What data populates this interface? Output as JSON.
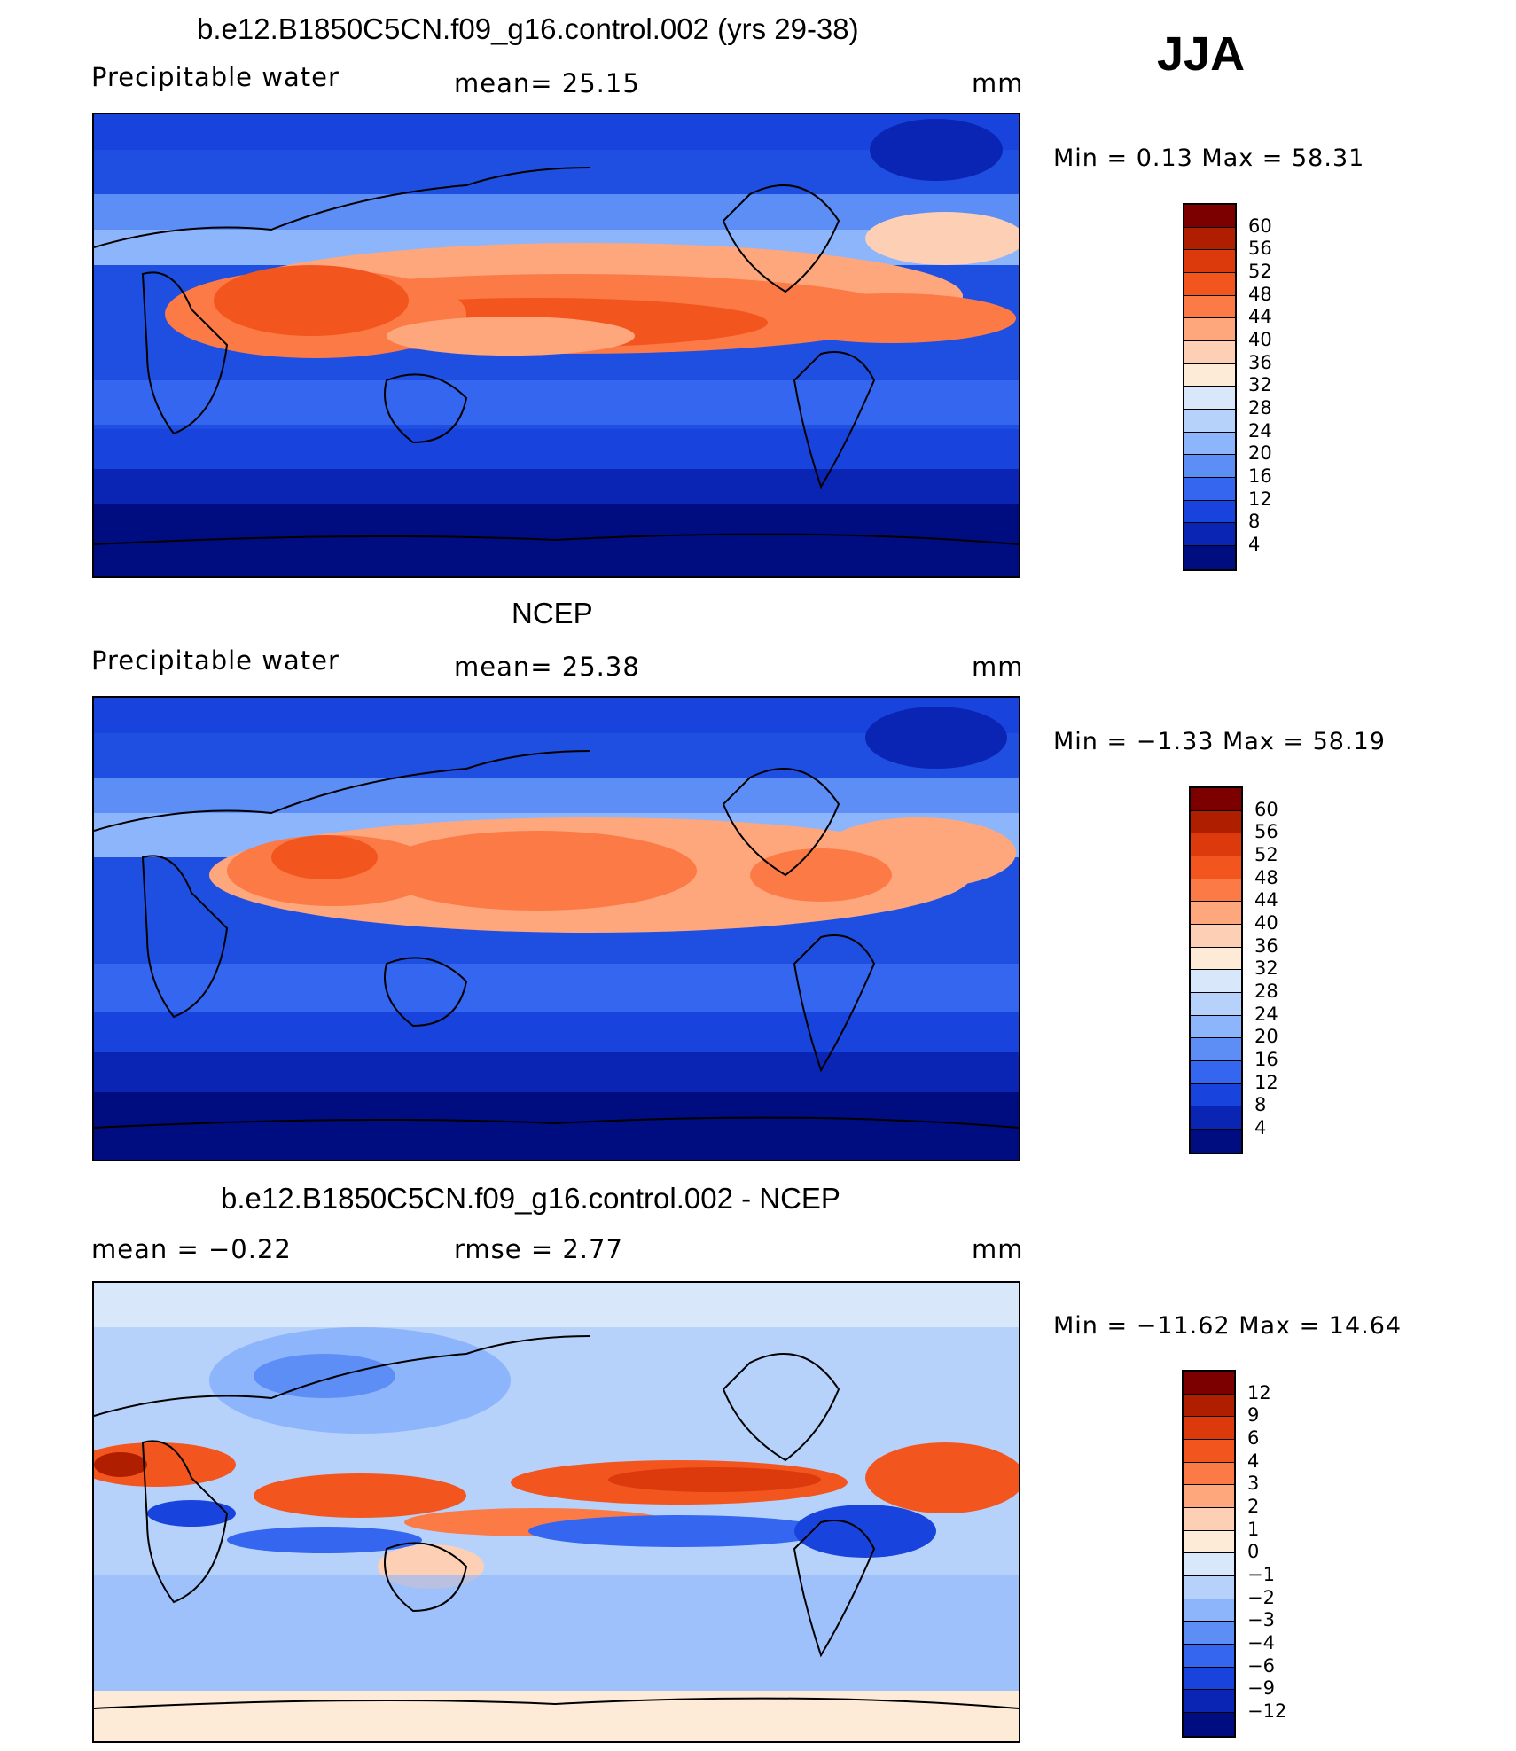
{
  "season": "JJA",
  "panels": [
    {
      "title": "b.e12.B1850C5CN.f09_g16.control.002 (yrs 29-38)",
      "left_label": "Precipitable  water",
      "center_label": "mean=   25.15",
      "units": "mm",
      "minmax": "Min  =     0.13  Max  =    58.31",
      "legend": [
        "60",
        "56",
        "52",
        "48",
        "44",
        "40",
        "36",
        "32",
        "28",
        "24",
        "20",
        "16",
        "12",
        "8",
        "4"
      ]
    },
    {
      "title": "NCEP",
      "left_label": "Precipitable  water",
      "center_label": "mean=   25.38",
      "units": "mm",
      "minmax": "Min  =    −1.33  Max  =    58.19",
      "legend": [
        "60",
        "56",
        "52",
        "48",
        "44",
        "40",
        "36",
        "32",
        "28",
        "24",
        "20",
        "16",
        "12",
        "8",
        "4"
      ]
    },
    {
      "title": "b.e12.B1850C5CN.f09_g16.control.002 - NCEP",
      "left_label": "mean  =     −0.22",
      "center_label": "rmse  =     2.77",
      "units": "mm",
      "minmax": "Min  = −11.62  Max  =    14.64",
      "legend": [
        "12",
        "9",
        "6",
        "4",
        "3",
        "2",
        "1",
        "0",
        "−1",
        "−2",
        "−3",
        "−4",
        "−6",
        "−9",
        "−12"
      ]
    }
  ],
  "colors": {
    "field_scale": [
      "#7d0000",
      "#b01e00",
      "#dc3a0c",
      "#f3551f",
      "#fb7a45",
      "#fea67c",
      "#fdd0b5",
      "#fdebd8",
      "#d8e8fa",
      "#b6d2fb",
      "#8db5fb",
      "#5d8ef6",
      "#3466f0",
      "#1843dc",
      "#0a24b4",
      "#000d80"
    ],
    "land_outline": "#000000"
  }
}
